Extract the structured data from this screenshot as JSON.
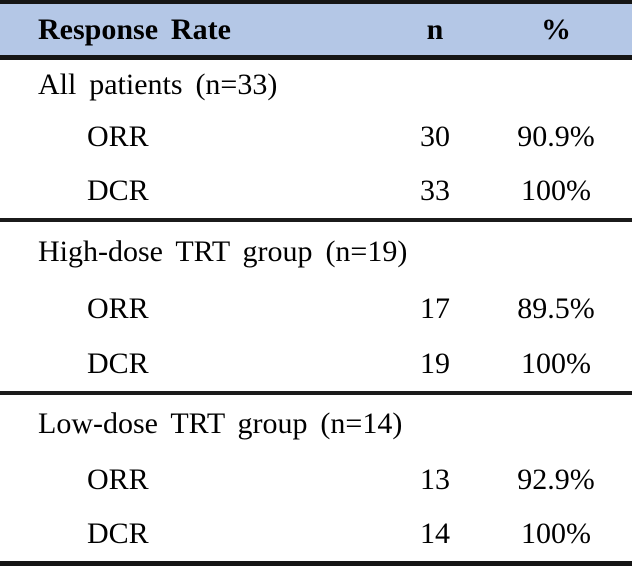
{
  "table": {
    "colors": {
      "header_bg": "#b4c7e6",
      "border": "#151515",
      "text": "#000000"
    },
    "header": {
      "label": "Response Rate",
      "n": "n",
      "pct": "%"
    },
    "sections": [
      {
        "label": "All patients (n=33)",
        "rows": [
          {
            "name": "ORR",
            "n": "30",
            "pct": "90.9%"
          },
          {
            "name": "DCR",
            "n": "33",
            "pct": "100%"
          }
        ]
      },
      {
        "label": "High-dose TRT group (n=19)",
        "rows": [
          {
            "name": "ORR",
            "n": "17",
            "pct": "89.5%"
          },
          {
            "name": "DCR",
            "n": "19",
            "pct": "100%"
          }
        ]
      },
      {
        "label": "Low-dose TRT group (n=14)",
        "rows": [
          {
            "name": "ORR",
            "n": "13",
            "pct": "92.9%"
          },
          {
            "name": "DCR",
            "n": "14",
            "pct": "100%"
          }
        ]
      }
    ]
  }
}
